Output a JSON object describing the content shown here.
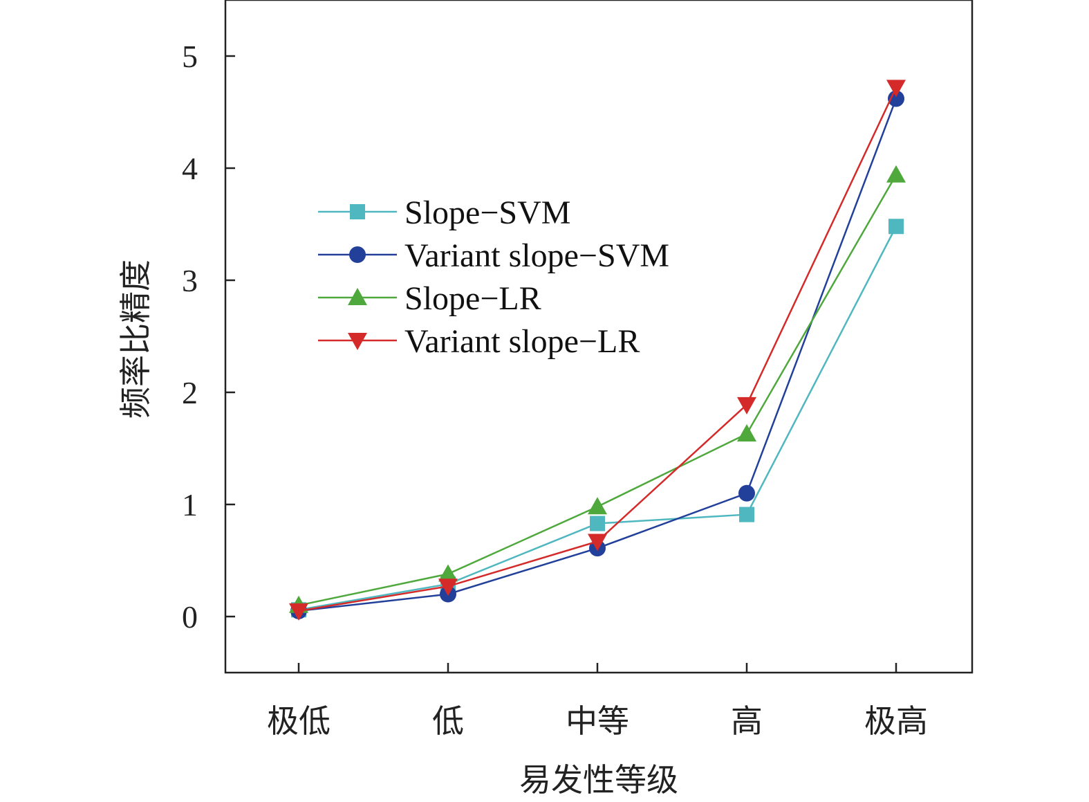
{
  "chart_data": {
    "type": "line",
    "title": "",
    "xlabel": "易发性等级",
    "ylabel": "频率比精度",
    "categories": [
      "极低",
      "低",
      "中等",
      "高",
      "极高"
    ],
    "ylim": [
      -0.5,
      5.5
    ],
    "yticks": [
      0,
      1,
      2,
      3,
      4,
      5
    ],
    "grid": false,
    "legend_position": "upper-left (inside)",
    "series": [
      {
        "name": "Slope−SVM",
        "values": [
          0.06,
          0.29,
          0.83,
          0.91,
          3.48
        ],
        "color": "#4fb7c0",
        "marker": "square"
      },
      {
        "name": "Variant slope−SVM",
        "values": [
          0.05,
          0.2,
          0.61,
          1.1,
          4.62
        ],
        "color": "#22409a",
        "marker": "circle"
      },
      {
        "name": "Slope−LR",
        "values": [
          0.1,
          0.38,
          0.98,
          1.63,
          3.94
        ],
        "color": "#4ea83c",
        "marker": "triangle-up"
      },
      {
        "name": "Variant slope−LR",
        "values": [
          0.05,
          0.27,
          0.67,
          1.89,
          4.72
        ],
        "color": "#d42a2a",
        "marker": "triangle-down"
      }
    ]
  }
}
